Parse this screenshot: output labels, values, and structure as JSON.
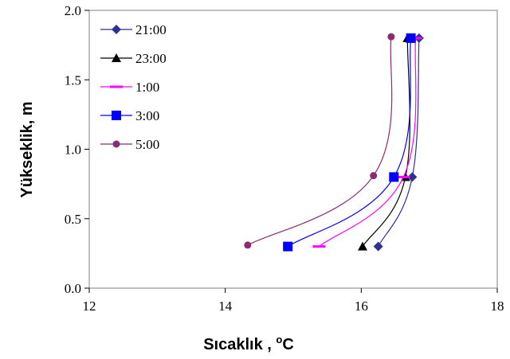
{
  "chart_data": {
    "type": "line",
    "xlabel": "Sıcaklık , ",
    "xlabel_unit_sup": "o",
    "xlabel_unit": "C",
    "ylabel": "Yükseklik, m",
    "xlim": [
      12,
      18
    ],
    "ylim": [
      0.0,
      2.0
    ],
    "x_ticks": [
      "12",
      "14",
      "16",
      "18"
    ],
    "y_ticks": [
      "0.0",
      "0.5",
      "1.0",
      "1.5",
      "2.0"
    ],
    "grid": false,
    "legend_position": "top-left",
    "series": [
      {
        "name": "21:00",
        "color": "#2E3192",
        "marker": "diamond",
        "points": [
          [
            16.25,
            0.3
          ],
          [
            16.75,
            0.8
          ],
          [
            16.85,
            1.8
          ]
        ]
      },
      {
        "name": "23:00",
        "color": "#000000",
        "marker": "triangle",
        "points": [
          [
            16.02,
            0.3
          ],
          [
            16.65,
            0.8
          ],
          [
            16.68,
            1.8
          ]
        ]
      },
      {
        "name": "1:00",
        "color": "#FF00FF",
        "marker": "dash",
        "points": [
          [
            15.38,
            0.3
          ],
          [
            16.62,
            0.8
          ],
          [
            16.8,
            1.8
          ]
        ]
      },
      {
        "name": "3:00",
        "color": "#0000FF",
        "marker": "square",
        "points": [
          [
            14.92,
            0.3
          ],
          [
            16.48,
            0.8
          ],
          [
            16.73,
            1.8
          ]
        ]
      },
      {
        "name": "5:00",
        "color": "#8B2C73",
        "marker": "circle",
        "points": [
          [
            14.33,
            0.31
          ],
          [
            16.18,
            0.81
          ],
          [
            16.44,
            1.81
          ]
        ]
      }
    ]
  }
}
